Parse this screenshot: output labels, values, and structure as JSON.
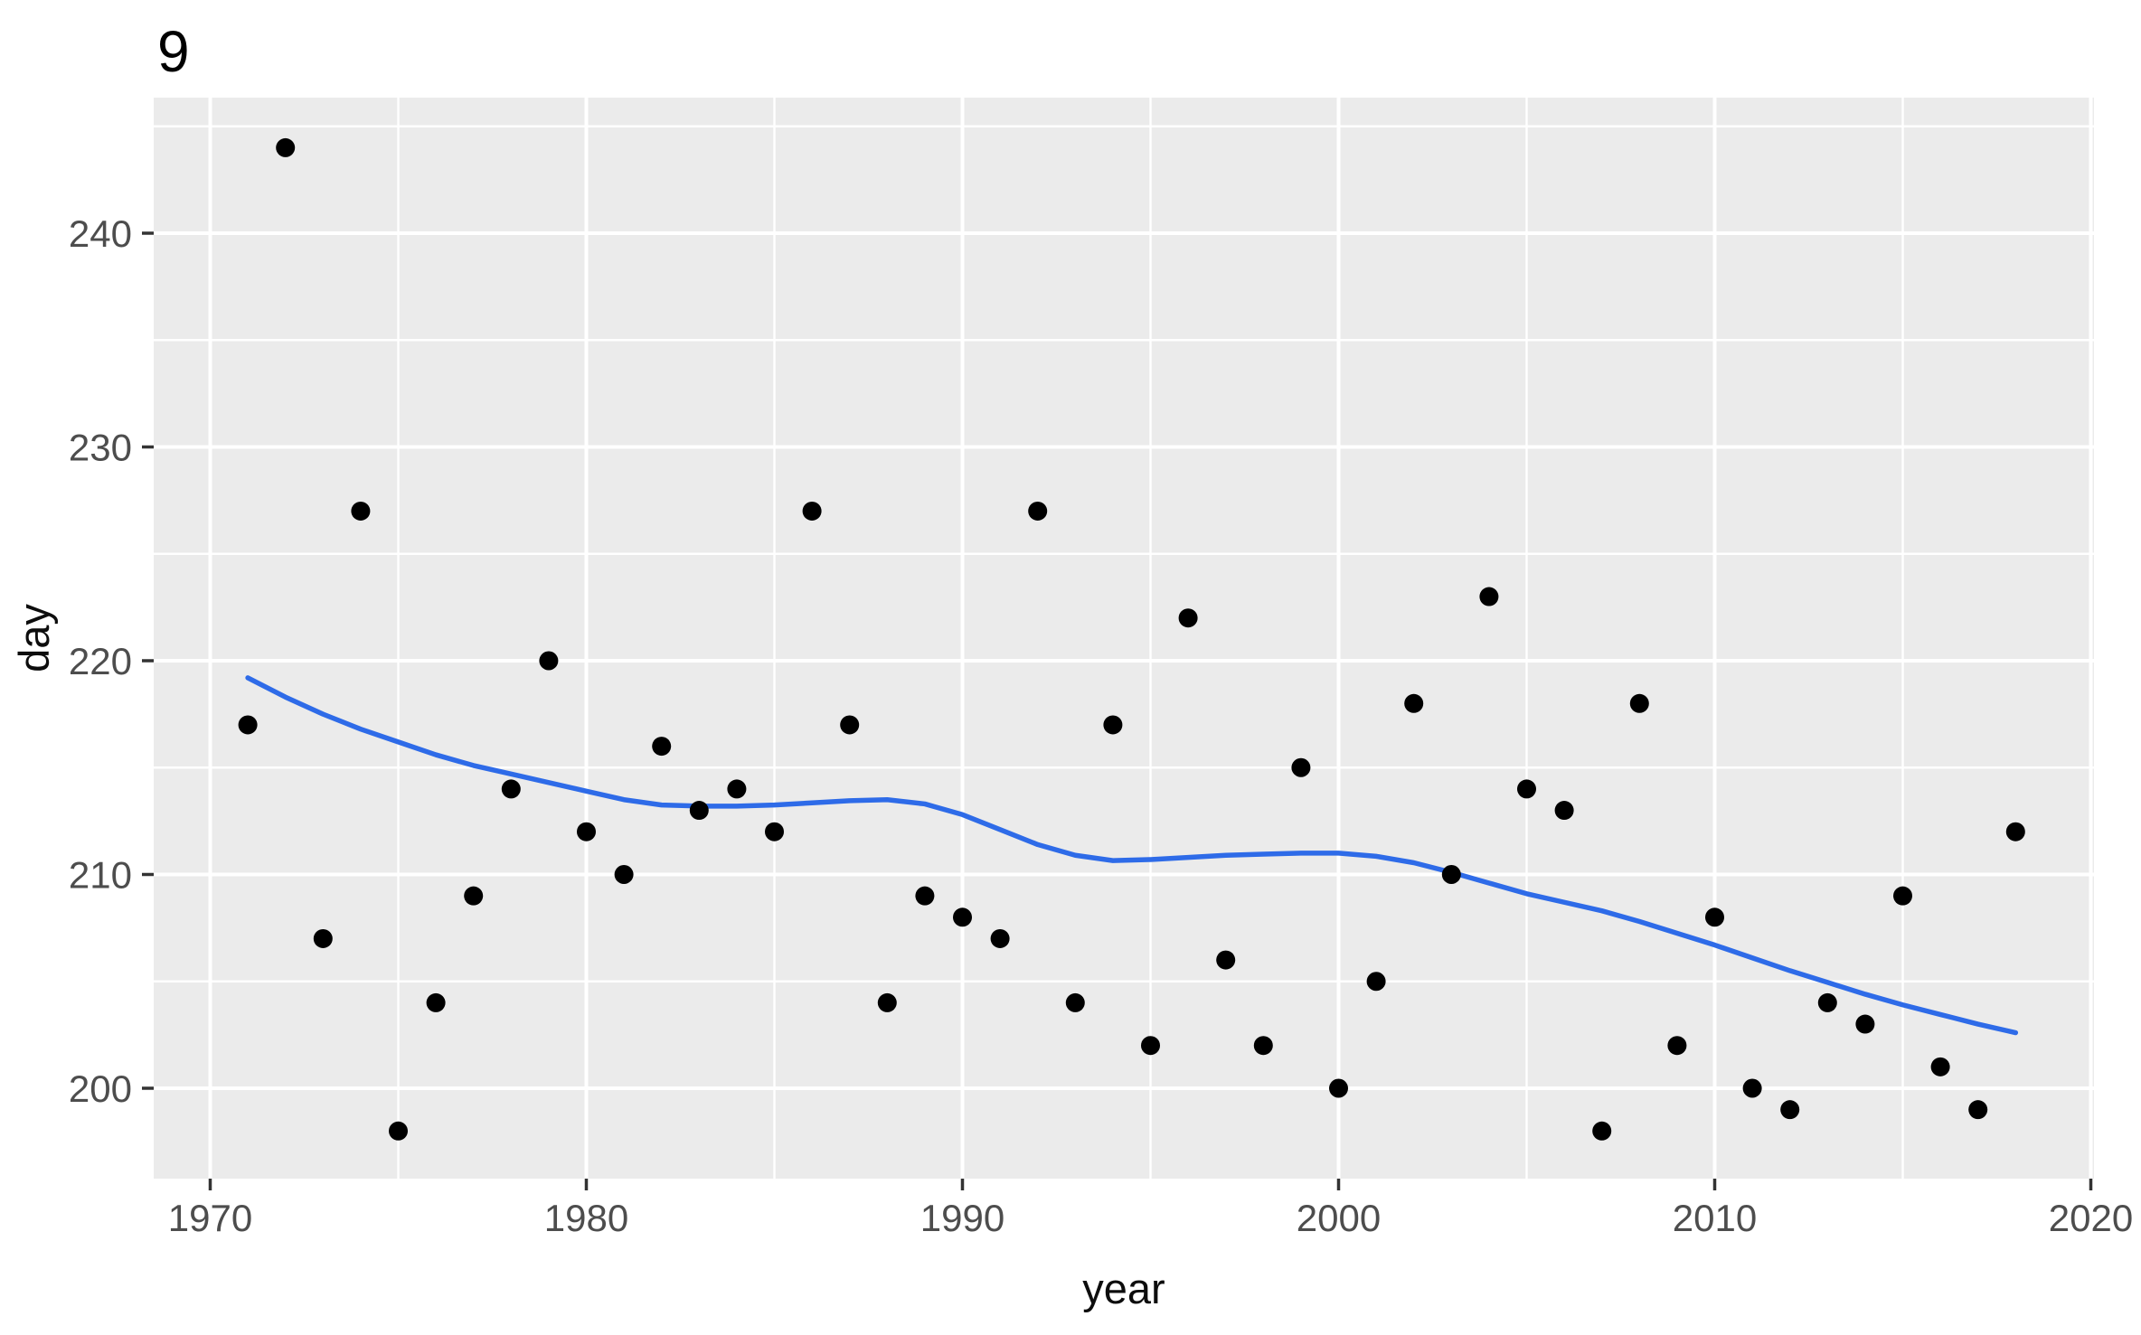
{
  "title": "9",
  "axes": {
    "x": {
      "label": "year",
      "tick_labels": [
        "1970",
        "1980",
        "1990",
        "2000",
        "2010",
        "2020"
      ],
      "tick_values": [
        1970,
        1980,
        1990,
        2000,
        2010,
        2020
      ],
      "minor_values": [
        1975,
        1985,
        1995,
        2005,
        2015
      ]
    },
    "y": {
      "label": "day",
      "tick_labels": [
        "200",
        "210",
        "220",
        "230",
        "240"
      ],
      "tick_values": [
        200,
        210,
        220,
        230,
        240
      ],
      "minor_values": [
        205,
        215,
        225,
        235,
        245
      ]
    }
  },
  "colors": {
    "panel_background": "#EBEBEB",
    "gridline": "#FFFFFF",
    "point": "#000000",
    "smooth_line": "#2E6BE8",
    "tick_mark": "#333333",
    "tick_label": "#4D4D4D",
    "title_text": "#000000"
  },
  "chart_data": {
    "type": "scatter",
    "title": "9",
    "xlabel": "year",
    "ylabel": "day",
    "xlim": [
      1968.7,
      2020.3
    ],
    "ylim": [
      195.7,
      246.4
    ],
    "grid": "on",
    "legend": "none",
    "series": [
      {
        "name": "observations",
        "type": "scatter",
        "x": [
          1971,
          1972,
          1973,
          1974,
          1975,
          1976,
          1977,
          1978,
          1979,
          1980,
          1981,
          1982,
          1983,
          1984,
          1985,
          1986,
          1987,
          1988,
          1989,
          1990,
          1991,
          1992,
          1993,
          1994,
          1995,
          1996,
          1997,
          1998,
          1999,
          2000,
          2001,
          2002,
          2003,
          2004,
          2005,
          2006,
          2007,
          2008,
          2009,
          2010,
          2011,
          2012,
          2013,
          2014,
          2015,
          2016,
          2017,
          2018
        ],
        "y": [
          217,
          244,
          207,
          227,
          198,
          204,
          209,
          214,
          220,
          212,
          210,
          216,
          213,
          214,
          212,
          227,
          217,
          204,
          209,
          208,
          207,
          227,
          204,
          217,
          202,
          222,
          206,
          202,
          215,
          200,
          205,
          218,
          210,
          223,
          214,
          213,
          198,
          218,
          202,
          208,
          200,
          199,
          204,
          203,
          209,
          201,
          199,
          212
        ]
      },
      {
        "name": "loess-smooth",
        "type": "line",
        "x": [
          1971,
          1972,
          1973,
          1974,
          1975,
          1976,
          1977,
          1978,
          1979,
          1980,
          1981,
          1982,
          1983,
          1984,
          1985,
          1986,
          1987,
          1988,
          1989,
          1990,
          1991,
          1992,
          1993,
          1994,
          1995,
          1996,
          1997,
          1998,
          1999,
          2000,
          2001,
          2002,
          2003,
          2004,
          2005,
          2006,
          2007,
          2008,
          2009,
          2010,
          2011,
          2012,
          2013,
          2014,
          2015,
          2016,
          2017,
          2018
        ],
        "y": [
          219.2,
          218.3,
          217.5,
          216.8,
          216.2,
          215.6,
          215.1,
          214.7,
          214.3,
          213.9,
          213.5,
          213.25,
          213.2,
          213.2,
          213.25,
          213.35,
          213.45,
          213.5,
          213.3,
          212.8,
          212.1,
          211.4,
          210.9,
          210.65,
          210.7,
          210.8,
          210.9,
          210.95,
          211.0,
          211.0,
          210.85,
          210.55,
          210.1,
          209.6,
          209.1,
          208.7,
          208.3,
          207.8,
          207.25,
          206.7,
          206.1,
          205.5,
          204.95,
          204.4,
          203.9,
          203.45,
          203.0,
          202.6
        ]
      }
    ]
  }
}
